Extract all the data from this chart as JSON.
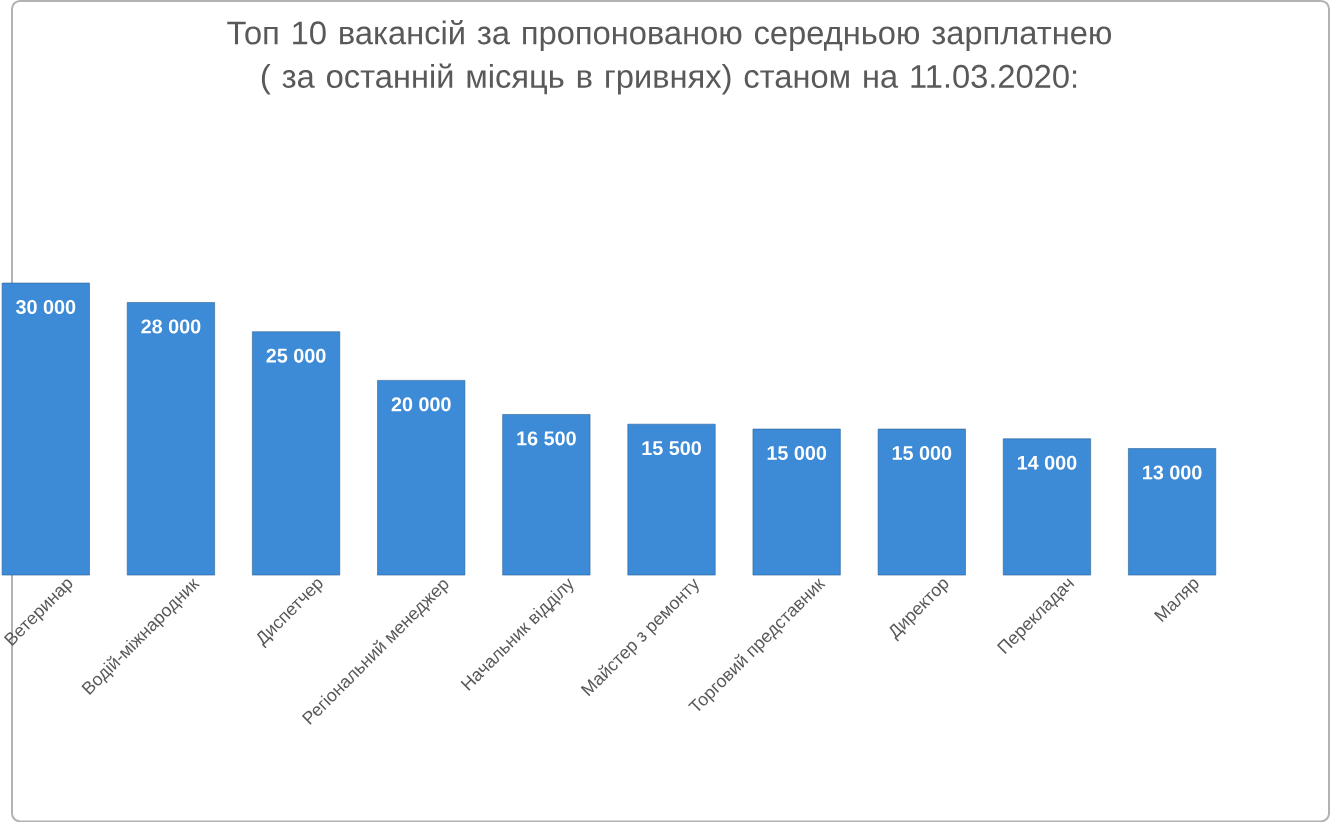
{
  "chart_data": {
    "type": "bar",
    "title": "Топ 10 вакансій за пропонованою середньою зарплатнею ( за останній місяць в гривнях) станом на 11.03.2020:",
    "categories": [
      "Ветеринар",
      "Водій-міжнародник",
      "Диспетчер",
      "Регіональний менеджер",
      "Начальник відділу",
      "Майстер з ремонту",
      "Торговий представник",
      "Директор",
      "Перекладач",
      "Маляр"
    ],
    "values": [
      30000,
      28000,
      25000,
      20000,
      16500,
      15500,
      15000,
      15000,
      14000,
      13000
    ],
    "value_labels": [
      "30 000",
      "28 000",
      "25 000",
      "20 000",
      "16 500",
      "15 500",
      "15 000",
      "15 000",
      "14 000",
      "13 000"
    ],
    "color": "#3d8bd7"
  }
}
